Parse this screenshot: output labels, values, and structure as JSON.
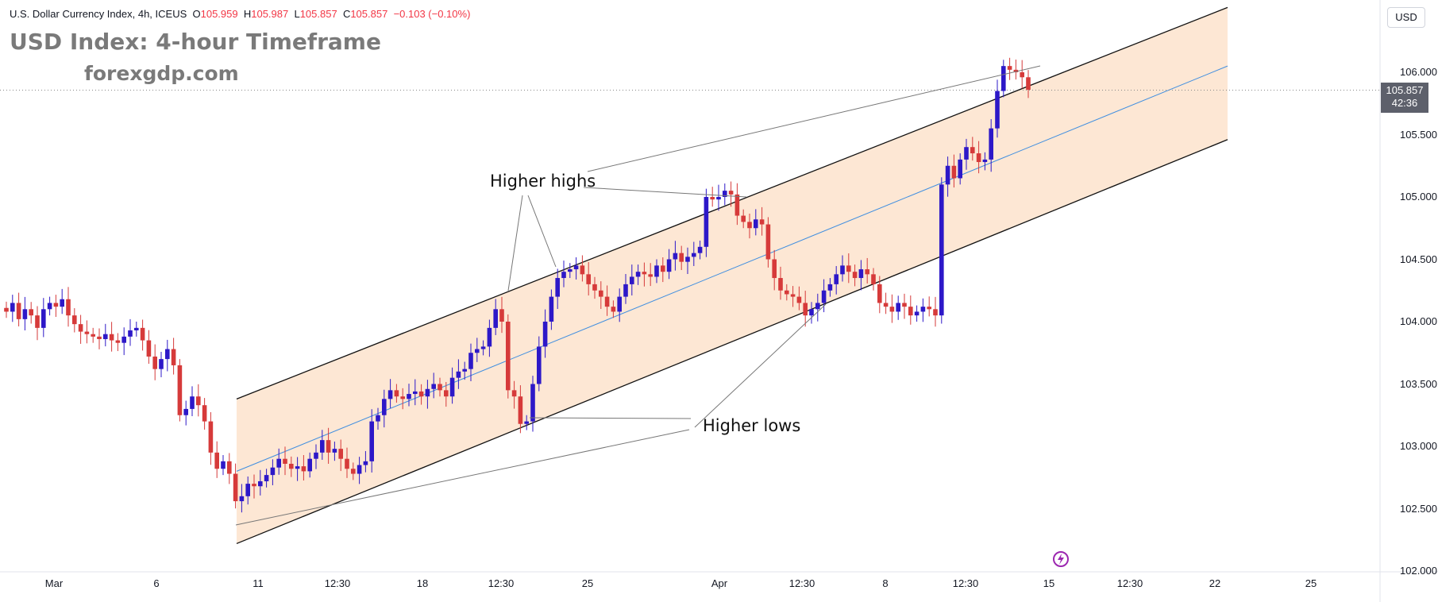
{
  "header": {
    "symbol_name": "U.S. Dollar Currency Index, 4h, ICEUS",
    "o_label": "O",
    "o_value": "105.959",
    "h_label": "H",
    "h_value": "105.987",
    "l_label": "L",
    "l_value": "105.857",
    "c_label": "C",
    "c_value": "105.857",
    "change": "−0.103 (−0.10%)"
  },
  "overlay": {
    "title": "USD Index: 4-hour Timeframe",
    "site": "forexgdp.com"
  },
  "annotations": {
    "higher_highs": "Higher highs",
    "higher_lows": "Higher lows"
  },
  "price_scale": {
    "currency_button": "USD",
    "current_price": "105.857",
    "countdown": "42:36",
    "ticks": [
      "106.000",
      "105.500",
      "105.000",
      "104.500",
      "104.000",
      "103.500",
      "103.000",
      "102.500",
      "102.000"
    ]
  },
  "time_scale": {
    "ticks": [
      "Mar",
      "6",
      "11",
      "12:30",
      "18",
      "12:30",
      "25",
      "Apr",
      "12:30",
      "8",
      "12:30",
      "15",
      "12:30",
      "22",
      "25"
    ]
  },
  "colors": {
    "up": "#2d18c8",
    "down": "#d63a3a",
    "channel_fill": "#fde3cc",
    "midline": "#3f8ee0",
    "text_gray": "#7a7a7a"
  },
  "chart_data": {
    "type": "candlestick",
    "symbol": "U.S. Dollar Currency Index",
    "interval": "4h",
    "ylim": [
      102.0,
      106.3
    ],
    "last_price": 105.857,
    "pattern": "ascending channel",
    "channel": {
      "upper": [
        [
          102.64,
          103.38
        ],
        [
          105.12,
          106.52
        ]
      ],
      "lower": [
        [
          102.64,
          102.22
        ],
        [
          105.12,
          105.46
        ]
      ],
      "mid": [
        [
          102.64,
          102.8
        ],
        [
          105.12,
          106.05
        ]
      ]
    },
    "close_series": [
      104.08,
      104.15,
      104.02,
      104.1,
      104.05,
      103.95,
      104.1,
      104.15,
      104.12,
      104.18,
      104.05,
      103.98,
      103.92,
      103.9,
      103.88,
      103.86,
      103.9,
      103.85,
      103.83,
      103.88,
      103.93,
      103.95,
      103.85,
      103.72,
      103.62,
      103.7,
      103.78,
      103.65,
      103.25,
      103.3,
      103.4,
      103.33,
      103.2,
      102.95,
      102.82,
      102.88,
      102.78,
      102.56,
      102.6,
      102.7,
      102.68,
      102.72,
      102.77,
      102.83,
      102.9,
      102.86,
      102.82,
      102.84,
      102.8,
      102.9,
      102.95,
      103.05,
      102.95,
      102.98,
      102.9,
      102.82,
      102.78,
      102.85,
      102.88,
      103.2,
      103.25,
      103.38,
      103.45,
      103.4,
      103.38,
      103.42,
      103.44,
      103.4,
      103.46,
      103.5,
      103.45,
      103.4,
      103.55,
      103.6,
      103.62,
      103.75,
      103.78,
      103.8,
      103.95,
      104.1,
      104.0,
      103.45,
      103.4,
      103.18,
      103.2,
      103.5,
      103.8,
      104.0,
      104.2,
      104.35,
      104.4,
      104.42,
      104.45,
      104.38,
      104.3,
      104.25,
      104.2,
      104.12,
      104.08,
      104.2,
      104.3,
      104.36,
      104.4,
      104.38,
      104.36,
      104.45,
      104.4,
      104.5,
      104.55,
      104.48,
      104.52,
      104.55,
      104.6,
      105.0,
      104.98,
      105.0,
      105.05,
      105.02,
      104.85,
      104.8,
      104.75,
      104.82,
      104.78,
      104.5,
      104.35,
      104.25,
      104.22,
      104.2,
      104.15,
      104.05,
      104.1,
      104.15,
      104.25,
      104.3,
      104.38,
      104.45,
      104.4,
      104.35,
      104.42,
      104.38,
      104.3,
      104.15,
      104.12,
      104.08,
      104.15,
      104.12,
      104.05,
      104.08,
      104.12,
      104.1,
      104.05,
      105.1,
      105.25,
      105.15,
      105.3,
      105.4,
      105.35,
      105.28,
      105.3,
      105.55,
      105.85,
      106.05,
      106.02,
      106.0,
      105.96,
      105.86
    ],
    "swing_highs": [
      104.15,
      104.48,
      105.08,
      106.08
    ],
    "swing_lows": [
      102.56,
      103.15,
      104.0
    ]
  }
}
